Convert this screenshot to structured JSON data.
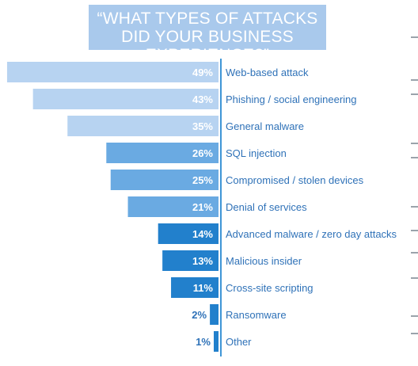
{
  "title": {
    "line1": "“WHAT TYPES OF ATTACKS",
    "line2": "DID YOUR BUSINESS EXPERIENCE?”"
  },
  "colors": {
    "light": "#b7d3f1",
    "medium": "#6aaae2",
    "dark": "#2280cc",
    "label": "#2f72b8",
    "title_bg": "#a9c9ec"
  },
  "chart_data": {
    "type": "bar",
    "orientation": "horizontal",
    "unit": "%",
    "categories": [
      "Web-based attack",
      "Phishing / social engineering",
      "General malware",
      "SQL injection",
      "Compromised / stolen devices",
      "Denial of services",
      "Advanced malware / zero day attacks",
      "Malicious insider",
      "Cross-site scripting",
      "Ransomware",
      "Other"
    ],
    "values": [
      49,
      43,
      35,
      26,
      25,
      21,
      14,
      13,
      11,
      2,
      1
    ],
    "value_labels": [
      "49%",
      "43%",
      "35%",
      "26%",
      "25%",
      "21%",
      "14%",
      "13%",
      "11%",
      "2%",
      "1%"
    ]
  }
}
